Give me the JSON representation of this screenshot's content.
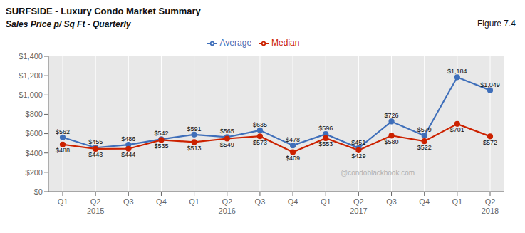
{
  "chart_data": {
    "type": "line",
    "title": "SURFSIDE - Luxury Condo Market Summary",
    "subtitle": "Sales Price p/ Sq Ft - Quarterly",
    "annotations": [
      "Figure 7.4",
      "@condoblackbook.com"
    ],
    "categories": [
      "Q1",
      "Q2\n2015",
      "Q3",
      "Q4",
      "Q1",
      "Q2\n2016",
      "Q3",
      "Q4",
      "Q1",
      "Q2\n2017",
      "Q3",
      "Q4",
      "Q1",
      "Q2\n2018"
    ],
    "series": [
      {
        "name": "Average",
        "color": "#3f6fba",
        "marker": "circle",
        "values": [
          562,
          455,
          486,
          542,
          591,
          565,
          635,
          478,
          596,
          451,
          726,
          579,
          1184,
          1049
        ],
        "value_labels": [
          "$562",
          "$455",
          "$486",
          "$542",
          "$591",
          "$565",
          "$635",
          "$478",
          "$596",
          "$451",
          "$726",
          "$579",
          "$1,184",
          "$1,049"
        ]
      },
      {
        "name": "Median",
        "color": "#cc2200",
        "marker": "circle",
        "values": [
          488,
          443,
          444,
          535,
          513,
          549,
          573,
          409,
          553,
          429,
          580,
          522,
          701,
          572
        ],
        "value_labels": [
          "$488",
          "$443",
          "$444",
          "$535",
          "$513",
          "$549",
          "$573",
          "$409",
          "$553",
          "$429",
          "$580",
          "$522",
          "$701",
          "$572"
        ]
      }
    ],
    "ylim": [
      0,
      1400
    ],
    "yticks": [
      {
        "value": 0,
        "label": "$0"
      },
      {
        "value": 200,
        "label": "$200"
      },
      {
        "value": 400,
        "label": "$400"
      },
      {
        "value": 600,
        "label": "$600"
      },
      {
        "value": 800,
        "label": "$800"
      },
      {
        "value": 1000,
        "label": "$1,000"
      },
      {
        "value": 1200,
        "label": "$1,200"
      },
      {
        "value": 1400,
        "label": "$1,400"
      }
    ],
    "grid": true,
    "legend": "top",
    "data_labels": true
  }
}
